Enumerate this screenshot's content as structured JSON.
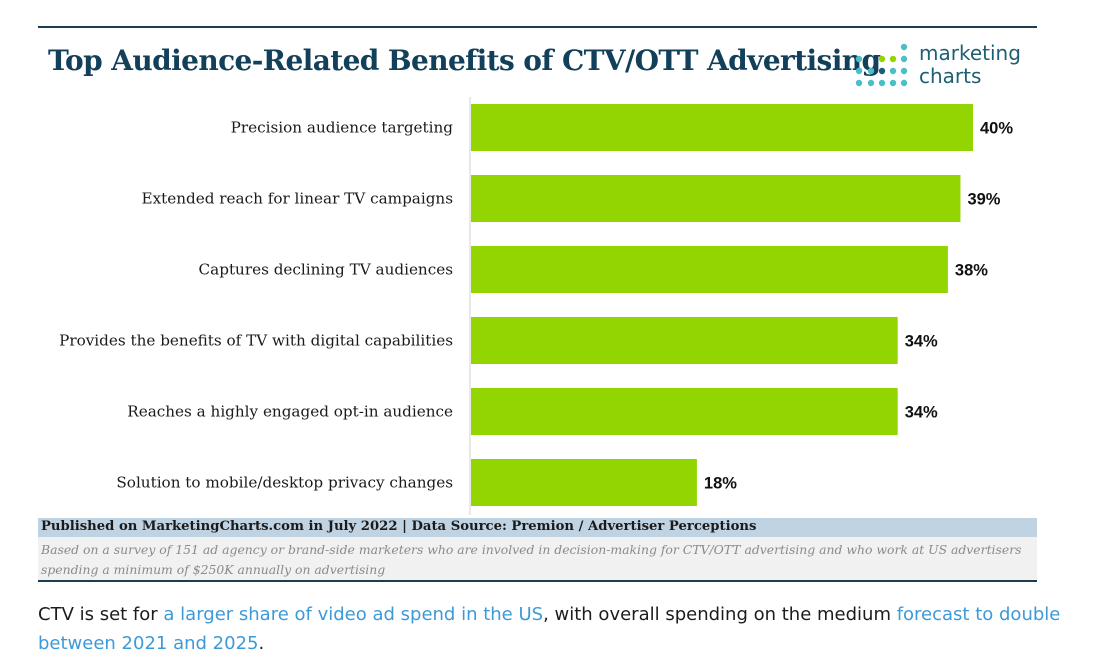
{
  "header": {
    "title": "Top Audience-Related Benefits of CTV/OTT Advertising",
    "logo_line1": "marketing",
    "logo_line2": "charts"
  },
  "chart_data": {
    "type": "bar",
    "orientation": "horizontal",
    "title": "Top Audience-Related Benefits of CTV/OTT Advertising",
    "xlabel": "",
    "ylabel": "",
    "categories": [
      "Precision audience targeting",
      "Extended reach for linear TV campaigns",
      "Captures declining TV audiences",
      "Provides the benefits of TV with digital capabilities",
      "Reaches a highly engaged opt-in audience",
      "Solution to mobile/desktop privacy changes"
    ],
    "values": [
      40,
      39,
      38,
      34,
      34,
      18
    ],
    "value_labels": [
      "40%",
      "39%",
      "38%",
      "34%",
      "34%",
      "18%"
    ],
    "xlim": [
      0,
      40
    ],
    "grid": false,
    "legend": "none"
  },
  "footer": {
    "source": "Published on MarketingCharts.com in July 2022 | Data Source: Premion / Advertiser Perceptions",
    "note": "Based on a survey of 151 ad agency or brand-side marketers who are involved in decision-making for CTV/OTT advertising and who work at US advertisers spending a minimum of $250K annually on advertising"
  },
  "article": {
    "part1": "CTV is set for ",
    "link1": "a larger share of video ad spend in the US",
    "part2": ", with overall spending on the medium ",
    "link2": "forecast to double between 2021 and 2025",
    "part3": "."
  },
  "colors": {
    "bar": "#93d500",
    "title": "#12405a",
    "rule": "#1c3d4f",
    "link": "#3d9ad8",
    "logo_teal": "#4bbfc7",
    "logo_green": "#93d500",
    "logo_navy": "#1f5f74"
  }
}
